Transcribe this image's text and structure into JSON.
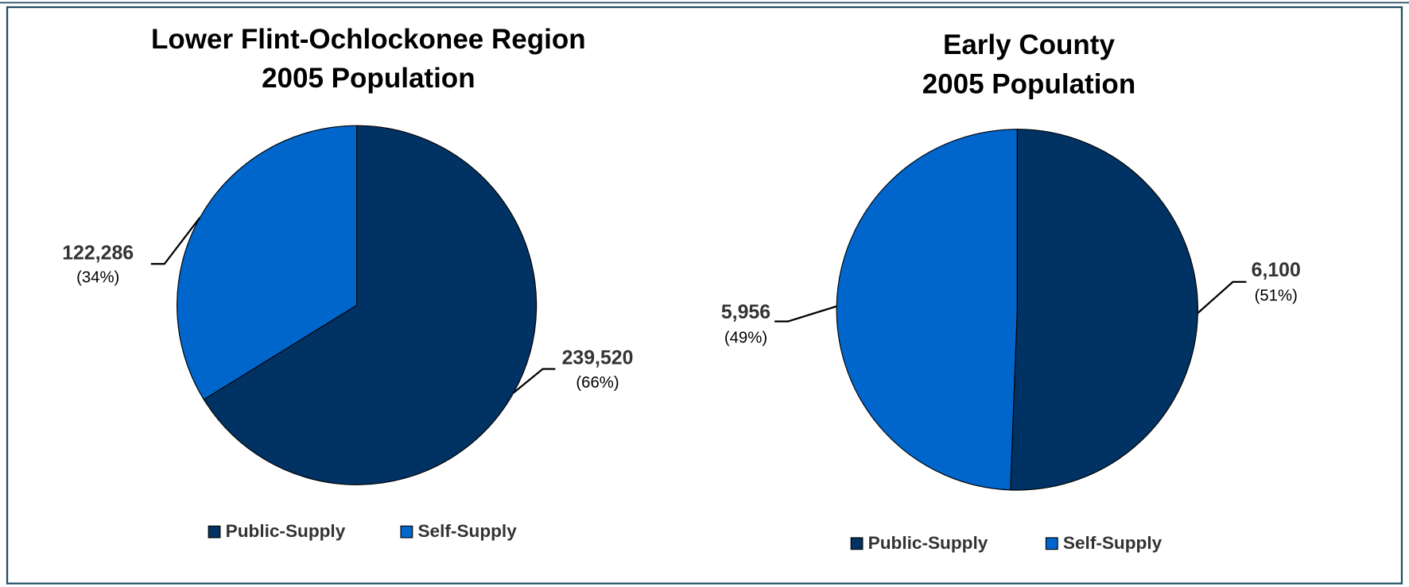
{
  "chart_data": [
    {
      "type": "pie",
      "title": [
        "Lower Flint-Ochlockonee Region",
        "2005 Population"
      ],
      "categories": [
        "Public-Supply",
        "Self-Supply"
      ],
      "values": [
        239520,
        122286
      ],
      "value_labels": [
        "239,520",
        "122,286"
      ],
      "percent_labels": [
        "(66%)",
        "(34%)"
      ],
      "colors": [
        "#003263",
        "#0066cc"
      ],
      "legend": "bottom"
    },
    {
      "type": "pie",
      "title": [
        "Early County",
        "2005 Population"
      ],
      "categories": [
        "Public-Supply",
        "Self-Supply"
      ],
      "values": [
        6100,
        5956
      ],
      "value_labels": [
        "6,100",
        "5,956"
      ],
      "percent_labels": [
        "(51%)",
        "(49%)"
      ],
      "colors": [
        "#003263",
        "#0066cc"
      ],
      "legend": "bottom"
    }
  ]
}
